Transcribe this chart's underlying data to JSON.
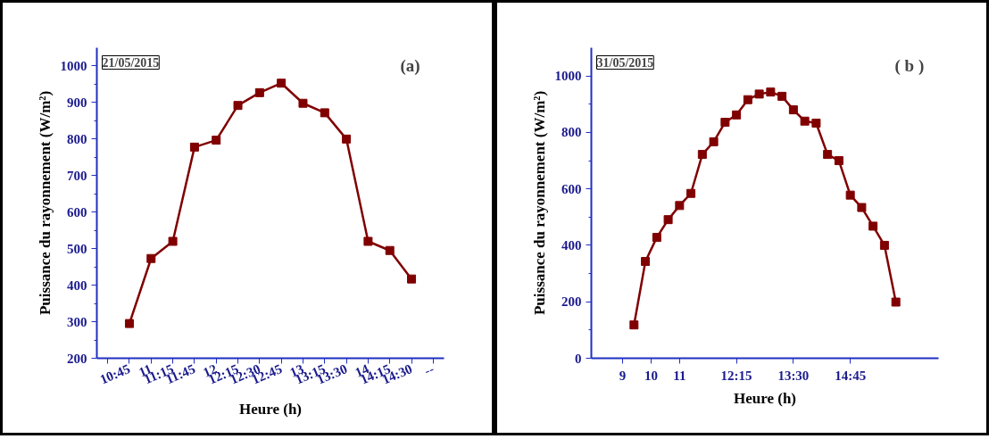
{
  "chart_data": [
    {
      "type": "line",
      "xlabel": "Heure (h)",
      "ylabel": "Puissance du rayonnement (W/m²)",
      "annotations": [
        "21/05/2015",
        "(a)"
      ],
      "categories": [
        null,
        "10:45",
        "11",
        "11:15",
        "11:45",
        "12",
        "12:15",
        "12:30",
        "12:45",
        "13",
        "13:15",
        "13:30",
        "14",
        "14:15",
        "14:30",
        "--"
      ],
      "series": [
        {
          "color": "#800000",
          "values": [
            null,
            295,
            473,
            520,
            778,
            797,
            892,
            927,
            953,
            898,
            872,
            800,
            520,
            495,
            417,
            null
          ]
        }
      ],
      "ylim": [
        200,
        1050
      ],
      "yticks": [
        200,
        300,
        400,
        500,
        600,
        700,
        800,
        900,
        1000
      ],
      "grid": false,
      "marker": "square",
      "line_style": "solid"
    },
    {
      "type": "line",
      "xlabel": "Heure (h)",
      "ylabel": "Puissance du rayonnement (W/m²)",
      "annotations": [
        "31/05/2015",
        "( b )"
      ],
      "categories": [
        null,
        null,
        null,
        null,
        null,
        "9",
        null,
        null,
        null,
        null,
        "10",
        null,
        null,
        null,
        null,
        "11",
        null,
        null,
        null,
        null,
        null,
        null,
        null,
        null,
        null,
        "12:15",
        null,
        null,
        null,
        null,
        null,
        null,
        null,
        null,
        null,
        "13:30",
        null,
        null,
        null,
        null,
        null,
        null,
        null,
        null,
        null,
        "14:45",
        null,
        null,
        null,
        null,
        null,
        null,
        null,
        null,
        null,
        null,
        null,
        null,
        null,
        null,
        null
      ],
      "series": [
        {
          "color": "#800000",
          "values": [
            null,
            null,
            null,
            null,
            null,
            null,
            null,
            118,
            null,
            343,
            null,
            428,
            null,
            491,
            null,
            541,
            null,
            584,
            null,
            722,
            null,
            767,
            null,
            836,
            null,
            862,
            null,
            916,
            null,
            936,
            null,
            943,
            null,
            928,
            null,
            880,
            null,
            840,
            null,
            833,
            null,
            722,
            null,
            700,
            null,
            578,
            null,
            534,
            null,
            468,
            null,
            400,
            null,
            199,
            null,
            null,
            null,
            null,
            null,
            null,
            null
          ]
        }
      ],
      "ylim": [
        0,
        1100
      ],
      "yticks": [
        0,
        200,
        400,
        600,
        800,
        1000
      ],
      "grid": false,
      "marker": "square",
      "line_style": "solid"
    }
  ]
}
